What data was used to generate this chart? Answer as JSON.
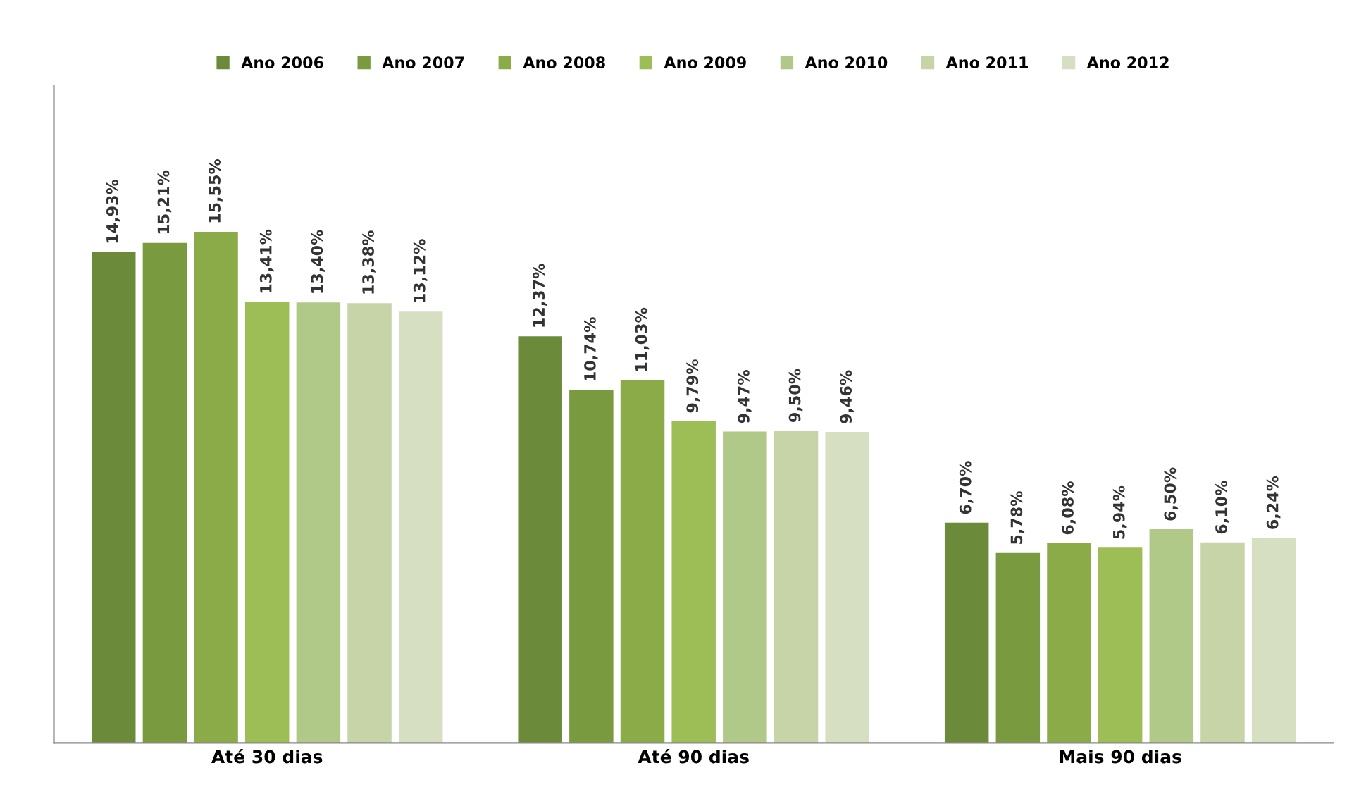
{
  "chart_data": {
    "type": "bar",
    "categories": [
      "Até 30 dias",
      "Até 90 dias",
      "Mais 90 dias"
    ],
    "series": [
      {
        "name": "Ano 2006",
        "color": "#6b8a3a",
        "values": [
          14.93,
          12.37,
          6.7
        ],
        "value_labels": [
          "14,93%",
          "12,37%",
          "6,70%"
        ]
      },
      {
        "name": "Ano 2007",
        "color": "#7a9a40",
        "values": [
          15.21,
          10.74,
          5.78
        ],
        "value_labels": [
          "15,21%",
          "10,74%",
          "5,78%"
        ]
      },
      {
        "name": "Ano 2008",
        "color": "#8aab48",
        "values": [
          15.55,
          11.03,
          6.08
        ],
        "value_labels": [
          "15,55%",
          "11,03%",
          "6,08%"
        ]
      },
      {
        "name": "Ano 2009",
        "color": "#9dbd56",
        "values": [
          13.41,
          9.79,
          5.94
        ],
        "value_labels": [
          "13,41%",
          "9,79%",
          "5,94%"
        ]
      },
      {
        "name": "Ano 2010",
        "color": "#b0c888",
        "values": [
          13.4,
          9.47,
          6.5
        ],
        "value_labels": [
          "13,40%",
          "9,47%",
          "6,50%"
        ]
      },
      {
        "name": "Ano 2011",
        "color": "#c6d4a8",
        "values": [
          13.38,
          9.5,
          6.1
        ],
        "value_labels": [
          "13,38%",
          "9,50%",
          "6,10%"
        ]
      },
      {
        "name": "Ano 2012",
        "color": "#d6dfc2",
        "values": [
          13.12,
          9.46,
          6.24
        ],
        "value_labels": [
          "13,12%",
          "9,46%",
          "6,24%"
        ]
      }
    ],
    "ylim": [
      0,
      20
    ],
    "tick_labels": "x",
    "legend": "top",
    "grid": false
  }
}
